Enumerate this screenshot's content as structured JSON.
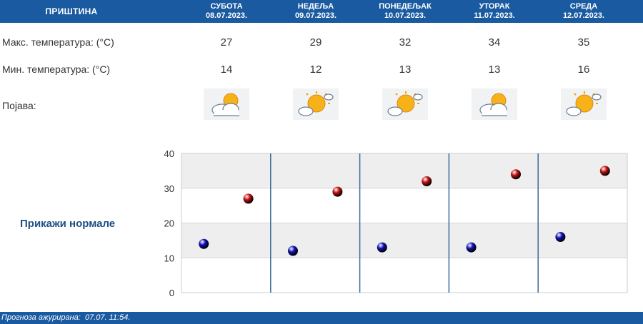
{
  "header": {
    "city": "ПРИШТИНА",
    "days": [
      {
        "name": "СУБОТА",
        "date": "08.07.2023."
      },
      {
        "name": "НЕДЕЉА",
        "date": "09.07.2023."
      },
      {
        "name": "ПОНЕДЕЉАК",
        "date": "10.07.2023."
      },
      {
        "name": "УТОРАК",
        "date": "11.07.2023."
      },
      {
        "name": "СРЕДА",
        "date": "12.07.2023."
      }
    ]
  },
  "rows": {
    "max_label": "Макс. температура: (°C)",
    "min_label": "Мин. температура: (°C)",
    "phenomenon_label": "Појава:"
  },
  "values": {
    "max": [
      "27",
      "29",
      "32",
      "34",
      "35"
    ],
    "min": [
      "14",
      "12",
      "13",
      "13",
      "16"
    ]
  },
  "icons": [
    "partly-cloudy-icon",
    "mostly-sunny-icon",
    "mostly-sunny-icon",
    "partly-cloudy-icon",
    "mostly-sunny-icon"
  ],
  "normals_link": "Прикажи нормале",
  "footer": {
    "label": "Прогноза ажурирана:",
    "value": "07.07. 11:54."
  },
  "colors": {
    "header_blue": "#1a5aa0",
    "max_dot": "#c41010",
    "min_dot": "#1010b8",
    "link": "#1f4f86"
  },
  "chart_data": {
    "type": "scatter",
    "categories": [
      "СУБОТА",
      "НЕДЕЉА",
      "ПОНЕДЕЉАК",
      "УТОРАК",
      "СРЕДА"
    ],
    "series": [
      {
        "values": [
          14,
          12,
          13,
          13,
          16
        ],
        "color": "#1010b8"
      },
      {
        "values": [
          27,
          29,
          32,
          34,
          35
        ],
        "color": "#c41010"
      }
    ],
    "ylim": [
      0,
      40
    ],
    "yticks": [
      "0",
      "10",
      "20",
      "30",
      "40"
    ],
    "grid": true
  }
}
